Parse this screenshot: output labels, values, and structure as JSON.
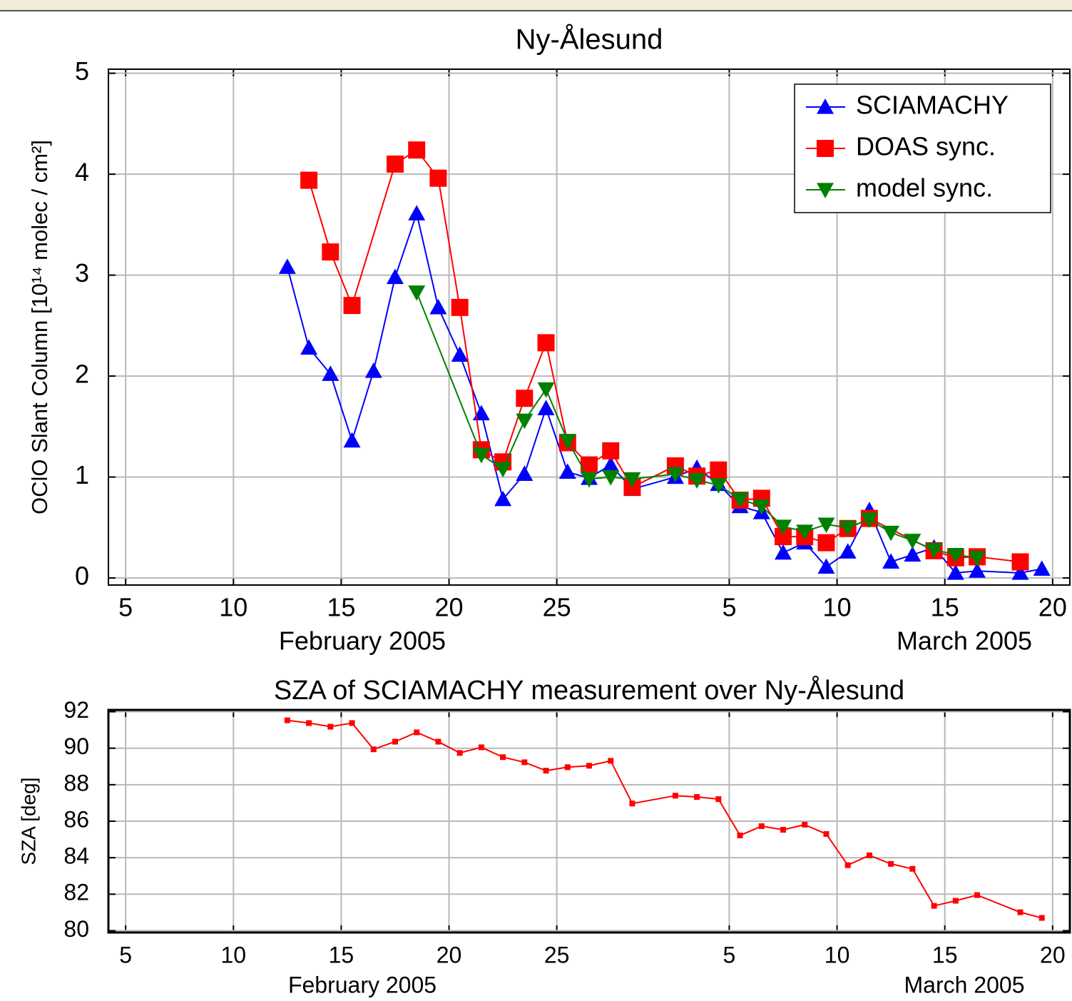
{
  "chart_data": [
    {
      "type": "line",
      "title": "Ny-Ålesund",
      "ylabel": "OClO Slant Column  [10¹⁴ molec / cm²]",
      "month_labels": [
        "February 2005",
        "March 2005"
      ],
      "xlim": [
        4.2,
        48.8
      ],
      "ylim": [
        -0.07,
        5.04
      ],
      "xticks": [
        5,
        10,
        15,
        20,
        25,
        {
          "value": 33,
          "label": "5"
        },
        {
          "value": 38,
          "label": "10"
        },
        {
          "value": 43,
          "label": "15"
        },
        {
          "value": 48,
          "label": "20"
        }
      ],
      "yticks": [
        0,
        1,
        2,
        3,
        4,
        5
      ],
      "grid": true,
      "legend": "upper right",
      "series": [
        {
          "name": "SCIAMACHY",
          "color": "#0000ff",
          "marker": "triangle-up",
          "x": [
            12.5,
            13.5,
            14.5,
            15.5,
            16.5,
            17.5,
            18.5,
            19.5,
            20.5,
            21.5,
            22.5,
            23.5,
            24.5,
            25.5,
            26.5,
            27.5,
            28.5,
            30.5,
            31.5,
            32.5,
            33.5,
            34.5,
            35.5,
            36.5,
            37.5,
            38.5,
            39.5,
            40.5,
            41.5,
            42.5,
            43.5,
            44.5,
            46.5,
            47.5
          ],
          "values": [
            3.08,
            2.28,
            2.02,
            1.36,
            2.05,
            2.98,
            3.61,
            2.68,
            2.21,
            1.63,
            0.78,
            1.03,
            1.68,
            1.05,
            0.99,
            1.12,
            0.88,
            1.0,
            1.09,
            0.93,
            0.71,
            0.65,
            0.25,
            0.35,
            0.11,
            0.26,
            0.67,
            0.16,
            0.23,
            0.3,
            0.05,
            0.07,
            0.05,
            0.09
          ]
        },
        {
          "name": "DOAS sync.",
          "color": "#ff0000",
          "marker": "square",
          "x": [
            13.5,
            14.5,
            15.5,
            17.5,
            18.5,
            19.5,
            20.5,
            21.5,
            22.5,
            23.5,
            24.5,
            25.5,
            26.5,
            27.5,
            28.5,
            30.5,
            31.5,
            32.5,
            33.5,
            34.5,
            35.5,
            36.5,
            37.5,
            38.5,
            39.5,
            42.5,
            43.5,
            44.5,
            46.5
          ],
          "values": [
            3.94,
            3.23,
            2.7,
            4.1,
            4.24,
            3.96,
            2.68,
            1.27,
            1.15,
            1.78,
            2.33,
            1.34,
            1.12,
            1.26,
            0.9,
            1.11,
            1.01,
            1.07,
            0.77,
            0.79,
            0.41,
            0.41,
            0.35,
            0.49,
            0.59,
            0.27,
            0.2,
            0.21,
            0.16
          ]
        },
        {
          "name": "model sync.",
          "color": "#008000",
          "marker": "triangle-down",
          "x": [
            18.5,
            21.5,
            22.5,
            23.5,
            24.5,
            25.5,
            26.5,
            27.5,
            28.5,
            30.5,
            31.5,
            32.5,
            33.5,
            34.5,
            35.5,
            36.5,
            37.5,
            38.5,
            39.5,
            40.5,
            41.5,
            42.5,
            43.5,
            44.5
          ],
          "values": [
            2.83,
            1.22,
            1.08,
            1.56,
            1.87,
            1.36,
            0.98,
            1.0,
            0.98,
            1.03,
            0.97,
            0.92,
            0.78,
            0.71,
            0.51,
            0.46,
            0.53,
            0.5,
            0.58,
            0.45,
            0.37,
            0.28,
            0.23,
            0.2
          ]
        }
      ]
    },
    {
      "type": "line",
      "title": "SZA of SCIAMACHY measurement over Ny-Ålesund",
      "ylabel": "SZA [deg]",
      "month_labels": [
        "February 2005",
        "March 2005"
      ],
      "xlim": [
        4.2,
        48.8
      ],
      "ylim": [
        79.9,
        92.1
      ],
      "xticks": [
        5,
        10,
        15,
        20,
        25,
        {
          "value": 33,
          "label": "5"
        },
        {
          "value": 38,
          "label": "10"
        },
        {
          "value": 43,
          "label": "15"
        },
        {
          "value": 48,
          "label": "20"
        }
      ],
      "yticks": [
        80,
        82,
        84,
        86,
        88,
        90,
        92
      ],
      "grid": true,
      "series": [
        {
          "color": "#ff0000",
          "marker": "small-square",
          "x": [
            12.5,
            13.5,
            14.5,
            15.5,
            16.5,
            17.5,
            18.5,
            19.5,
            20.5,
            21.5,
            22.5,
            23.5,
            24.5,
            25.5,
            26.5,
            27.5,
            28.5,
            30.5,
            31.5,
            32.5,
            33.5,
            34.5,
            35.5,
            36.5,
            37.5,
            38.5,
            39.5,
            40.5,
            41.5,
            42.5,
            43.5,
            44.5,
            46.5,
            47.5
          ],
          "values": [
            91.53,
            91.38,
            91.18,
            91.38,
            89.94,
            90.36,
            90.87,
            90.36,
            89.74,
            90.05,
            89.51,
            89.23,
            88.77,
            88.96,
            89.04,
            89.31,
            86.97,
            87.4,
            87.33,
            87.21,
            85.22,
            85.73,
            85.53,
            85.81,
            85.3,
            83.59,
            84.13,
            83.66,
            83.39,
            81.36,
            81.64,
            81.95,
            81.01,
            80.7
          ]
        }
      ]
    }
  ]
}
